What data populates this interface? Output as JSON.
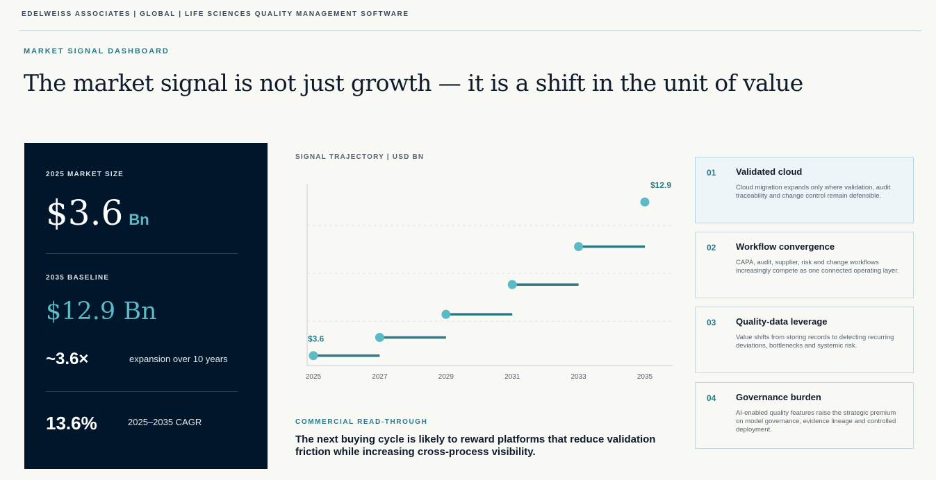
{
  "header": {
    "topbar": "EDELWEISS ASSOCIATES | GLOBAL | LIFE SCIENCES QUALITY MANAGEMENT SOFTWARE",
    "kicker": "MARKET SIGNAL DASHBOARD",
    "headline": "The market signal is not just growth — it is a shift in the unit of value"
  },
  "panel": {
    "market_size_label": "2025 MARKET SIZE",
    "market_size_value": "$3.6",
    "market_size_unit": "Bn",
    "baseline_label": "2035 BASELINE",
    "baseline_value": "$12.9 Bn",
    "multiple_value": "~3.6×",
    "multiple_desc": "expansion over 10 years",
    "cagr_value": "13.6%",
    "cagr_desc": "2025–2035 CAGR"
  },
  "chart_title": "SIGNAL TRAJECTORY | USD BN",
  "chart_data": {
    "type": "line",
    "x": [
      2025,
      2027,
      2029,
      2031,
      2033,
      2035
    ],
    "values": [
      3.6,
      4.7,
      6.1,
      7.9,
      10.2,
      12.9
    ],
    "tick_labels": [
      "2025",
      "2027",
      "2029",
      "2031",
      "2033",
      "2035"
    ],
    "point_labels": [
      {
        "index": 0,
        "text": "$3.6"
      },
      {
        "index": 5,
        "text": "$12.9"
      }
    ],
    "ylim": [
      3.0,
      14.0
    ],
    "grid": "horizontal-dashed",
    "colors": {
      "point": "#5cb9c6",
      "segment": "#2b7a86",
      "label": "#2b7a86",
      "axis": "#c9d0d6"
    }
  },
  "readthrough": {
    "kicker": "COMMERCIAL READ-THROUGH",
    "text": "The next buying cycle is likely to reward platforms that reduce validation friction while increasing cross-process visibility."
  },
  "cards": [
    {
      "num": "01",
      "title": "Validated cloud",
      "text": "Cloud migration expands only where validation, audit traceability and change control remain defensible."
    },
    {
      "num": "02",
      "title": "Workflow convergence",
      "text": "CAPA, audit, supplier, risk and change workflows increasingly compete as one connected operating layer."
    },
    {
      "num": "03",
      "title": "Quality-data leverage",
      "text": "Value shifts from storing records to detecting recurring deviations, bottlenecks and systemic risk."
    },
    {
      "num": "04",
      "title": "Governance burden",
      "text": "AI-enabled quality features raise the strategic premium on model governance, evidence lineage and controlled deployment."
    }
  ]
}
